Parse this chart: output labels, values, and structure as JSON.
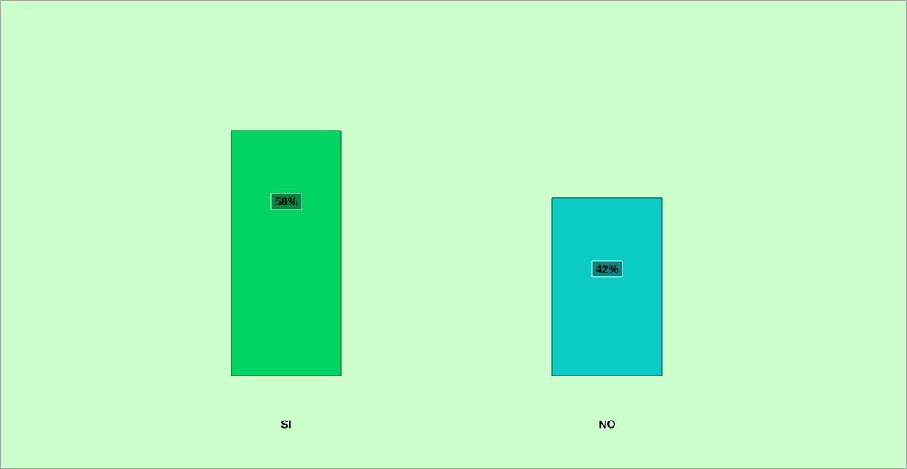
{
  "chart_data": {
    "type": "bar",
    "categories": [
      "SI",
      "NO"
    ],
    "values": [
      58,
      42
    ],
    "colors": [
      "#00d563",
      "#0bcbc5"
    ],
    "value_labels": [
      "58%",
      "42%"
    ]
  }
}
